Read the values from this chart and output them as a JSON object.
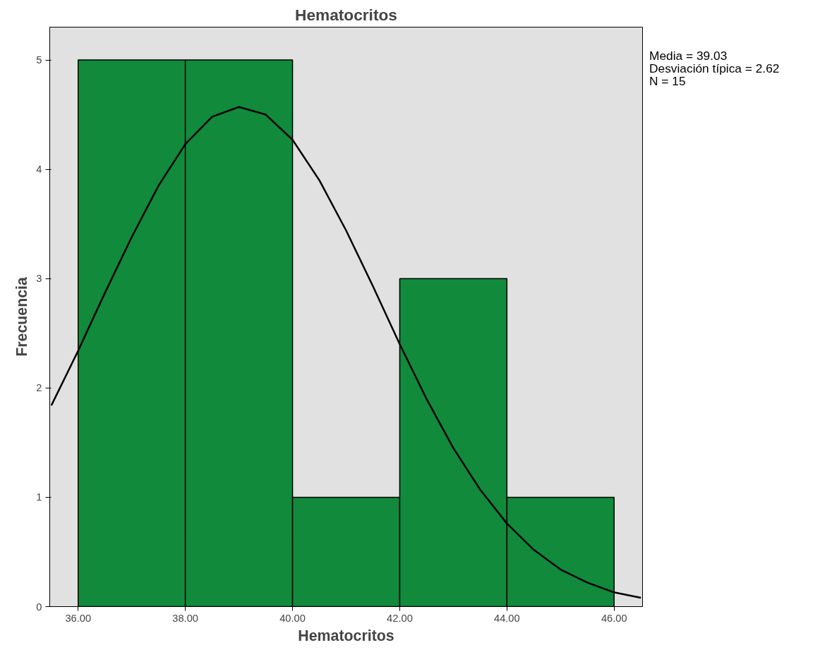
{
  "chart_data": {
    "type": "histogram",
    "title": "Hematocritos",
    "xlabel": "Hematocritos",
    "ylabel": "Frecuencia",
    "bins": [
      36,
      38,
      40,
      42,
      44,
      46
    ],
    "series": [
      {
        "color": "#118a3c",
        "values": [
          5,
          5,
          1,
          3,
          1
        ]
      },
      {
        "type": "line",
        "color": "#000000",
        "x": [
          35.5,
          36,
          36.5,
          37,
          37.5,
          38,
          38.5,
          39,
          39.5,
          40,
          40.5,
          41,
          41.5,
          42,
          42.5,
          43,
          43.5,
          44,
          44.5,
          45,
          45.5,
          46,
          46.5
        ],
        "values": [
          1.84,
          2.34,
          2.87,
          3.38,
          3.85,
          4.23,
          4.48,
          4.57,
          4.5,
          4.27,
          3.9,
          3.44,
          2.93,
          2.4,
          1.9,
          1.45,
          1.07,
          0.76,
          0.52,
          0.34,
          0.22,
          0.13,
          0.08
        ]
      }
    ],
    "xlim": [
      35.47,
      46.53
    ],
    "ylim": [
      0,
      5.3
    ],
    "xticks": [
      {
        "value": 36,
        "label": "36.00"
      },
      {
        "value": 38,
        "label": "38.00"
      },
      {
        "value": 40,
        "label": "40.00"
      },
      {
        "value": 42,
        "label": "42.00"
      },
      {
        "value": 44,
        "label": "44.00"
      },
      {
        "value": 46,
        "label": "46.00"
      }
    ],
    "yticks": [
      0,
      1,
      2,
      3,
      4,
      5
    ],
    "grid": false,
    "annotations": [
      "Media = 39.03",
      "Desviación típica = 2.62",
      "N = 15"
    ]
  }
}
